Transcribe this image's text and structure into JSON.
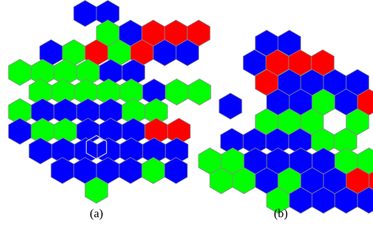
{
  "colors": {
    "blue": "#0000ff",
    "green": "#00ff00",
    "red": "#ff0000",
    "edge": "#8a8a8a"
  },
  "panels": [
    {
      "caption": "(a)",
      "rows": [
        [
          "blue",
          "blue"
        ],
        [
          "green",
          "blue",
          "red",
          "red",
          "red"
        ],
        [
          "blue",
          "green",
          "red",
          "green",
          "red",
          "blue",
          "blue"
        ],
        [
          "green",
          "green",
          "green",
          "green",
          "blue",
          "blue"
        ],
        [
          "green",
          "green",
          "green",
          "green",
          "green",
          "blue",
          "green",
          "green"
        ],
        [
          "green",
          "blue",
          "blue",
          "blue",
          "blue",
          "green",
          "green"
        ],
        [
          "blue",
          "green",
          "green",
          "blue",
          "blue",
          "blue",
          "red",
          "red"
        ],
        [
          "blue",
          "blue",
          "blue",
          "blue",
          "blue",
          "blue",
          "blue"
        ],
        [
          "blue",
          "blue",
          "blue",
          "blue",
          "green",
          "blue"
        ],
        [
          "green"
        ]
      ]
    },
    {
      "caption": "(b)",
      "rows": [
        [
          "blue",
          "blue"
        ],
        [
          "blue",
          "red",
          "red",
          "red"
        ],
        [
          "red",
          "blue",
          "blue",
          "blue",
          "blue"
        ],
        [
          "blue",
          "blue",
          "green",
          "blue",
          "red"
        ],
        [
          "green",
          "green",
          "green",
          "green"
        ],
        [
          "blue",
          "blue",
          "blue",
          "blue",
          "green",
          "green"
        ],
        [
          "green",
          "green",
          "blue",
          "blue",
          "blue",
          "blue",
          "green",
          "green"
        ],
        [
          "green",
          "green",
          "blue",
          "green",
          "blue",
          "blue",
          "red",
          "red"
        ],
        [
          "green",
          "blue",
          "blue",
          "blue",
          "blue"
        ]
      ]
    }
  ]
}
